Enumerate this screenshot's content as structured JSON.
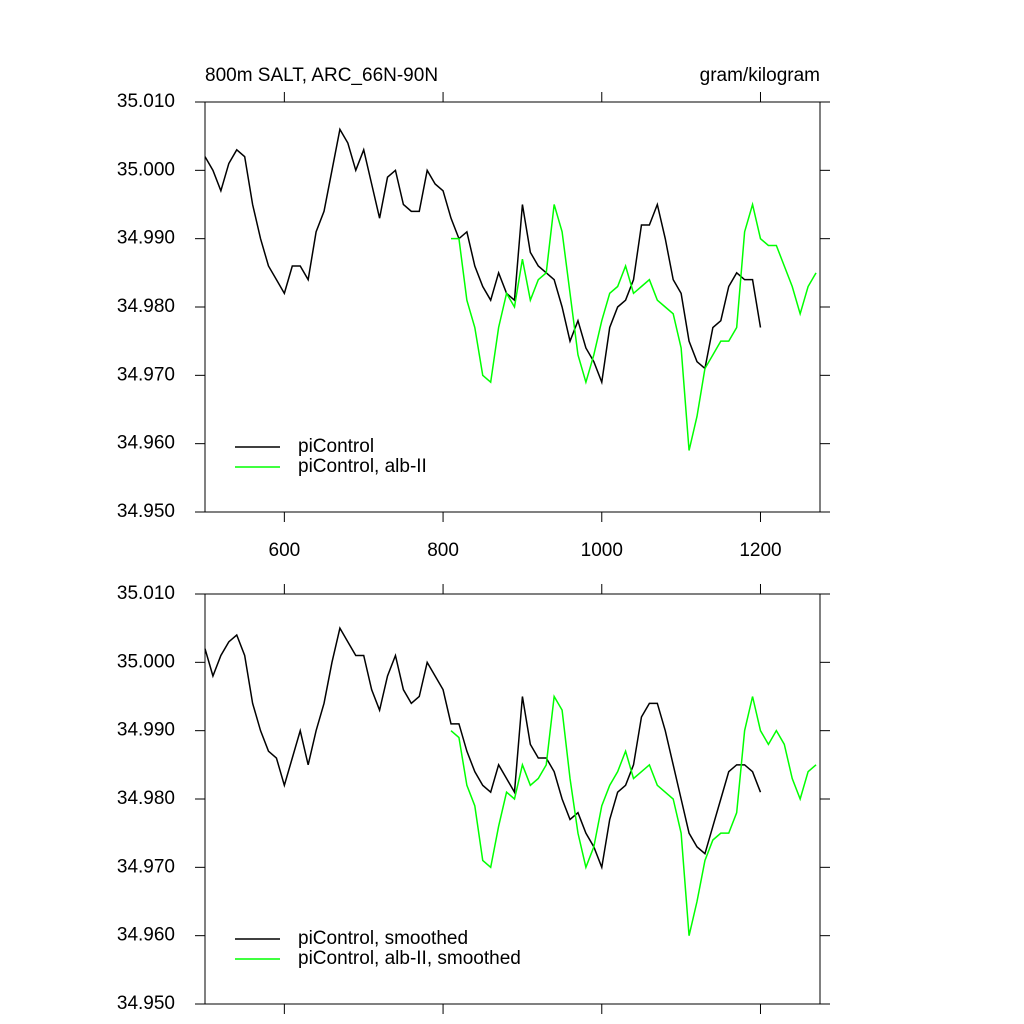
{
  "chart_data": [
    {
      "type": "line",
      "title": "800m SALT, ARC_66N-90N",
      "units": "gram/kilogram",
      "x": [
        500,
        510,
        520,
        530,
        540,
        550,
        560,
        570,
        580,
        590,
        600,
        610,
        620,
        630,
        640,
        650,
        660,
        670,
        680,
        690,
        700,
        710,
        720,
        730,
        740,
        750,
        760,
        770,
        780,
        790,
        800,
        810,
        820,
        830,
        840,
        850,
        860,
        870,
        880,
        890,
        900,
        910,
        920,
        930,
        940,
        950,
        960,
        970,
        980,
        990,
        1000,
        1010,
        1020,
        1030,
        1040,
        1050,
        1060,
        1070,
        1080,
        1090,
        1100,
        1110,
        1120,
        1130,
        1140,
        1150,
        1160,
        1170,
        1180,
        1190,
        1200,
        1210,
        1220,
        1230,
        1240,
        1250,
        1260,
        1270
      ],
      "series": [
        {
          "name": "piControl",
          "color": "#000000",
          "values": [
            35.002,
            35.0,
            34.997,
            35.001,
            35.003,
            35.002,
            34.995,
            34.99,
            34.986,
            34.984,
            34.982,
            34.986,
            34.986,
            34.984,
            34.991,
            34.994,
            35.0,
            35.006,
            35.004,
            35.0,
            35.003,
            34.998,
            34.993,
            34.999,
            35.0,
            34.995,
            34.994,
            34.994,
            35.0,
            34.998,
            34.997,
            34.993,
            34.99,
            34.991,
            34.986,
            34.983,
            34.981,
            34.985,
            34.982,
            34.981,
            34.995,
            34.988,
            34.986,
            34.985,
            34.984,
            34.98,
            34.975,
            34.978,
            34.974,
            34.972,
            34.969,
            34.977,
            34.98,
            34.981,
            34.984,
            34.992,
            34.992,
            34.995,
            34.99,
            34.984,
            34.982,
            34.975,
            34.972,
            34.971,
            34.977,
            34.978,
            34.983,
            34.985,
            34.984,
            34.984,
            34.977,
            null,
            null,
            null,
            null,
            null,
            null,
            null
          ]
        },
        {
          "name": "piControl, alb-II",
          "color": "#00ff00",
          "values": [
            null,
            null,
            null,
            null,
            null,
            null,
            null,
            null,
            null,
            null,
            null,
            null,
            null,
            null,
            null,
            null,
            null,
            null,
            null,
            null,
            null,
            null,
            null,
            null,
            null,
            null,
            null,
            null,
            null,
            null,
            null,
            34.99,
            34.99,
            34.981,
            34.977,
            34.97,
            34.969,
            34.977,
            34.982,
            34.98,
            34.987,
            34.981,
            34.984,
            34.985,
            34.995,
            34.991,
            34.982,
            34.973,
            34.969,
            34.973,
            34.978,
            34.982,
            34.983,
            34.986,
            34.982,
            34.983,
            34.984,
            34.981,
            34.98,
            34.979,
            34.974,
            34.959,
            34.964,
            34.971,
            34.973,
            34.975,
            34.975,
            34.977,
            34.991,
            34.995,
            34.99,
            34.989,
            34.989,
            34.986,
            34.983,
            34.979,
            34.983,
            34.985
          ]
        }
      ],
      "xlim": [
        500,
        1275
      ],
      "xticks": [
        600,
        800,
        1000,
        1200
      ],
      "show_xtick_labels": true,
      "ylim": [
        34.95,
        35.01
      ],
      "yticks": [
        {
          "value": 34.95,
          "label": "34.950"
        },
        {
          "value": 34.96,
          "label": "34.960"
        },
        {
          "value": 34.97,
          "label": "34.970"
        },
        {
          "value": 34.98,
          "label": "34.980"
        },
        {
          "value": 34.99,
          "label": "34.990"
        },
        {
          "value": 35.0,
          "label": "35.000"
        },
        {
          "value": 35.01,
          "label": "35.010"
        }
      ],
      "legend": "lower left"
    },
    {
      "type": "line",
      "x": [
        500,
        510,
        520,
        530,
        540,
        550,
        560,
        570,
        580,
        590,
        600,
        610,
        620,
        630,
        640,
        650,
        660,
        670,
        680,
        690,
        700,
        710,
        720,
        730,
        740,
        750,
        760,
        770,
        780,
        790,
        800,
        810,
        820,
        830,
        840,
        850,
        860,
        870,
        880,
        890,
        900,
        910,
        920,
        930,
        940,
        950,
        960,
        970,
        980,
        990,
        1000,
        1010,
        1020,
        1030,
        1040,
        1050,
        1060,
        1070,
        1080,
        1090,
        1100,
        1110,
        1120,
        1130,
        1140,
        1150,
        1160,
        1170,
        1180,
        1190,
        1200,
        1210,
        1220,
        1230,
        1240,
        1250,
        1260,
        1270
      ],
      "series": [
        {
          "name": "piControl, smoothed",
          "color": "#000000",
          "values": [
            35.002,
            34.998,
            35.001,
            35.003,
            35.004,
            35.001,
            34.994,
            34.99,
            34.987,
            34.986,
            34.982,
            34.986,
            34.99,
            34.985,
            34.99,
            34.994,
            35.0,
            35.005,
            35.003,
            35.001,
            35.001,
            34.996,
            34.993,
            34.998,
            35.001,
            34.996,
            34.994,
            34.995,
            35.0,
            34.998,
            34.996,
            34.991,
            34.991,
            34.987,
            34.984,
            34.982,
            34.981,
            34.985,
            34.983,
            34.981,
            34.995,
            34.988,
            34.986,
            34.986,
            34.984,
            34.98,
            34.977,
            34.978,
            34.975,
            34.973,
            34.97,
            34.977,
            34.981,
            34.982,
            34.985,
            34.992,
            34.994,
            34.994,
            34.99,
            34.985,
            34.98,
            34.975,
            34.973,
            34.972,
            34.976,
            34.98,
            34.984,
            34.985,
            34.985,
            34.984,
            34.981,
            null,
            null,
            null,
            null,
            null,
            null,
            null
          ]
        },
        {
          "name": "piControl, alb-II, smoothed",
          "color": "#00ff00",
          "values": [
            null,
            null,
            null,
            null,
            null,
            null,
            null,
            null,
            null,
            null,
            null,
            null,
            null,
            null,
            null,
            null,
            null,
            null,
            null,
            null,
            null,
            null,
            null,
            null,
            null,
            null,
            null,
            null,
            null,
            null,
            null,
            34.99,
            34.989,
            34.982,
            34.979,
            34.971,
            34.97,
            34.976,
            34.981,
            34.98,
            34.985,
            34.982,
            34.983,
            34.985,
            34.995,
            34.993,
            34.983,
            34.975,
            34.97,
            34.973,
            34.979,
            34.982,
            34.984,
            34.987,
            34.983,
            34.984,
            34.985,
            34.982,
            34.981,
            34.98,
            34.975,
            34.96,
            34.965,
            34.971,
            34.974,
            34.975,
            34.975,
            34.978,
            34.99,
            34.995,
            34.99,
            34.988,
            34.99,
            34.988,
            34.983,
            34.98,
            34.984,
            34.985
          ]
        }
      ],
      "xlim": [
        500,
        1275
      ],
      "xticks": [
        600,
        800,
        1000,
        1200
      ],
      "show_xtick_labels": false,
      "ylim": [
        34.95,
        35.01
      ],
      "yticks": [
        {
          "value": 34.95,
          "label": "34.950"
        },
        {
          "value": 34.96,
          "label": "34.960"
        },
        {
          "value": 34.97,
          "label": "34.970"
        },
        {
          "value": 34.98,
          "label": "34.980"
        },
        {
          "value": 34.99,
          "label": "34.990"
        },
        {
          "value": 35.0,
          "label": "35.000"
        },
        {
          "value": 35.01,
          "label": "35.010"
        }
      ],
      "legend": "lower left"
    }
  ]
}
